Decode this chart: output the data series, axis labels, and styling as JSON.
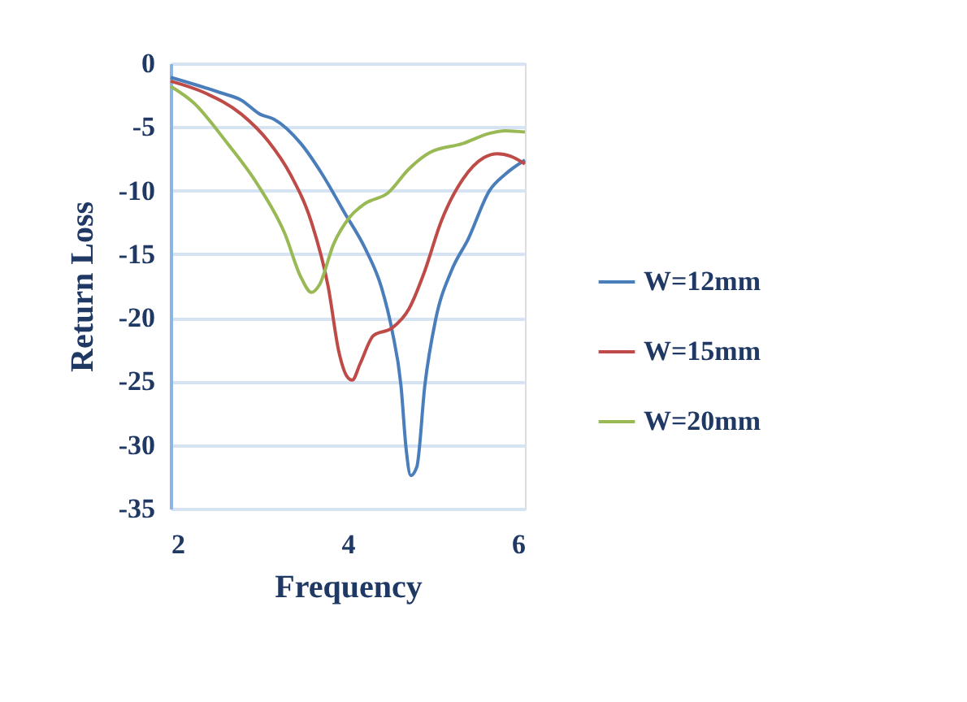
{
  "chart_data": {
    "type": "line",
    "xlabel": "Frequency",
    "ylabel": "Return Loss",
    "xlim": [
      2,
      6
    ],
    "xticks": [
      2,
      4,
      6
    ],
    "ylim": [
      -35,
      0
    ],
    "yticks": [
      -35,
      -30,
      -25,
      -20,
      -15,
      -10,
      -5,
      0
    ],
    "grid": "y",
    "legend": "right",
    "marker": "none",
    "line_style": "solid",
    "series": [
      {
        "name": "W=12mm",
        "color": "#4a7ebb",
        "x": [
          2,
          2.56,
          2.8,
          3.01,
          3.17,
          3.47,
          3.71,
          3.96,
          4.2,
          4.38,
          4.5,
          4.6,
          4.66,
          4.71,
          4.78,
          4.87,
          4.99,
          5.17,
          5.36,
          5.6,
          5.78,
          6
        ],
        "values": [
          -1.1,
          -2.3,
          -2.9,
          -4.0,
          -4.4,
          -6.3,
          -8.7,
          -11.7,
          -14.6,
          -17.6,
          -21,
          -25.3,
          -30.4,
          -32.4,
          -31.7,
          -25.3,
          -20.2,
          -16.3,
          -13.8,
          -10,
          -8.7,
          -7.6
        ]
      },
      {
        "name": "W=15mm",
        "color": "#be4b48",
        "x": [
          2,
          2.38,
          2.8,
          3.1,
          3.35,
          3.59,
          3.78,
          3.9,
          3.99,
          4.05,
          4.14,
          4.29,
          4.5,
          4.69,
          4.87,
          5.05,
          5.3,
          5.54,
          5.69,
          5.84,
          6
        ],
        "values": [
          -1.4,
          -2.3,
          -4.0,
          -6.1,
          -8.7,
          -12.5,
          -17.6,
          -22.7,
          -24.6,
          -24.9,
          -23.6,
          -21.4,
          -20.8,
          -19.3,
          -16.3,
          -12.5,
          -9.1,
          -7.4,
          -7.1,
          -7.3,
          -7.9
        ]
      },
      {
        "name": "W=20mm",
        "color": "#98b954",
        "x": [
          2,
          2.26,
          2.62,
          2.98,
          3.29,
          3.47,
          3.59,
          3.68,
          3.84,
          4.02,
          4.2,
          4.45,
          4.69,
          4.93,
          5.3,
          5.6,
          5.78,
          6
        ],
        "values": [
          -1.8,
          -3.1,
          -6.1,
          -9.5,
          -13.4,
          -16.8,
          -18.0,
          -17.4,
          -14.2,
          -12.1,
          -11.0,
          -10.2,
          -8.3,
          -7.0,
          -6.3,
          -5.5,
          -5.3,
          -5.4
        ]
      }
    ]
  }
}
